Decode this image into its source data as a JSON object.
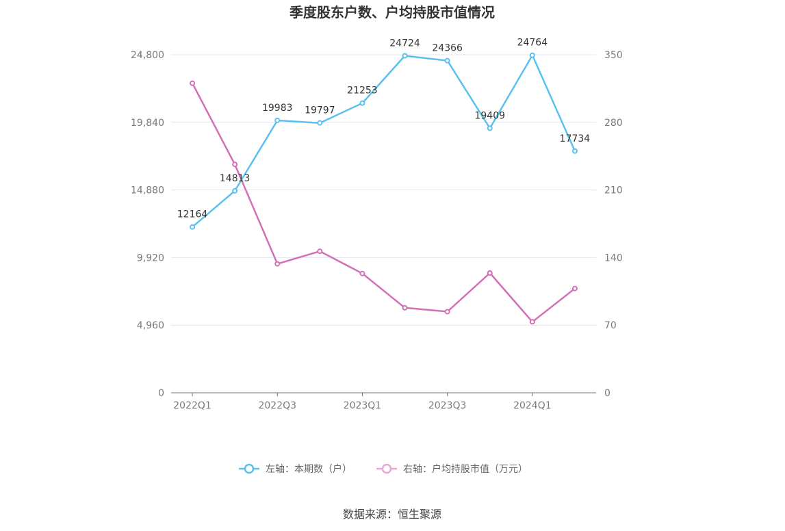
{
  "chart_data": {
    "type": "line",
    "title": "季度股东户数、户均持股市值情况",
    "categories": [
      "2022Q1",
      "2022Q2",
      "2022Q3",
      "2022Q4",
      "2023Q1",
      "2023Q2",
      "2023Q3",
      "2023Q4",
      "2024Q1",
      "2024Q2"
    ],
    "x_tick_labels": [
      "2022Q1",
      "2022Q3",
      "2023Q1",
      "2023Q3",
      "2024Q1"
    ],
    "y_left": {
      "min": 0,
      "max": 24800,
      "ticks": [
        "0",
        "4,960",
        "9,920",
        "14,880",
        "19,840",
        "24,800"
      ]
    },
    "y_right": {
      "min": 0,
      "max": 350,
      "ticks": [
        "0",
        "70",
        "140",
        "210",
        "280",
        "350"
      ]
    },
    "series": [
      {
        "name": "左轴：本期数（户）",
        "axis": "left",
        "color": "#5bc0f0",
        "values": [
          12164,
          14813,
          19983,
          19797,
          21253,
          24724,
          24366,
          19409,
          24764,
          17734
        ],
        "labels": [
          "12164",
          "14813",
          "19983",
          "19797",
          "21253",
          "24724",
          "24366",
          "19409",
          "24764",
          "17734"
        ]
      },
      {
        "name": "右轴：户均持股市值（万元）",
        "axis": "right",
        "color": "#d36fb4",
        "values": [
          320.5,
          236.5,
          133.5,
          146.5,
          123.5,
          88,
          84,
          124,
          73.5,
          108
        ]
      }
    ],
    "grid": true,
    "legend_position": "bottom"
  },
  "source": "数据来源：恒生聚源"
}
